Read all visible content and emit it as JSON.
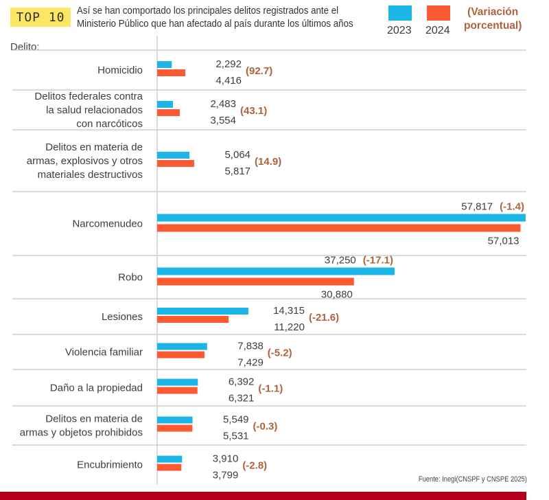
{
  "header": {
    "badge": "TOP 10",
    "subtitle_line1": "Así se han comportado los principales delitos registrados ante el",
    "subtitle_line2": "Ministerio Público que han afectado al país durante los últimos años",
    "category_header": "Delito:"
  },
  "legend": {
    "items": [
      {
        "label": "2023",
        "color": "#1bb6e6"
      },
      {
        "label": "2024",
        "color": "#fb5a33"
      }
    ],
    "variation_line1": "(Variación",
    "variation_line2": "porcentual)"
  },
  "source": "Fuente: Inegi(CNSPF y CNSPE 2025)",
  "colors": {
    "y2023": "#1bb6e6",
    "y2024": "#fb5a33",
    "variation": "#b0613a",
    "footer": "#b5001e",
    "badge": "#fde663"
  },
  "chart_data": {
    "type": "bar",
    "orientation": "horizontal",
    "title": "TOP 10",
    "subtitle": "Así se han comportado los principales delitos registrados ante el Ministerio Público que han afectado al país durante los últimos años",
    "ylabel": "Delito:",
    "xlabel": "",
    "grid": false,
    "legend_position": "top-right",
    "xlim": [
      0,
      57817
    ],
    "categories": [
      [
        "Homicidio"
      ],
      [
        "Delitos federales contra",
        "la salud relacionados",
        "con narcóticos"
      ],
      [
        "Delitos en materia de",
        "armas, explosivos y otros",
        "materiales destructivos"
      ],
      [
        "Narcomenudeo"
      ],
      [
        "Robo"
      ],
      [
        "Lesiones"
      ],
      [
        "Violencia familiar"
      ],
      [
        "Daño a la propiedad"
      ],
      [
        "Delitos en materia de",
        "armas y objetos prohibidos"
      ],
      [
        "Encubrimiento"
      ]
    ],
    "series": [
      {
        "name": "2023",
        "values": [
          2292,
          2483,
          5064,
          57817,
          37250,
          14315,
          7838,
          6392,
          5549,
          3910
        ],
        "labels": [
          "2,292",
          "2,483",
          "5,064",
          "57,817",
          "37,250",
          "14,315",
          "7,838",
          "6,392",
          "5,549",
          "3,910"
        ]
      },
      {
        "name": "2024",
        "values": [
          4416,
          3554,
          5817,
          57013,
          30880,
          11220,
          7429,
          6321,
          5531,
          3799
        ],
        "labels": [
          "4,416",
          "3,554",
          "5,817",
          "57,013",
          "30,880",
          "11,220",
          "7,429",
          "6,321",
          "5,531",
          "3,799"
        ]
      }
    ],
    "variation_percent": [
      92.7,
      43.1,
      14.9,
      -1.4,
      -17.1,
      -21.6,
      -5.2,
      -1.1,
      -0.3,
      -2.8
    ],
    "variation_labels": [
      "(92.7)",
      "(43.1)",
      "(14.9)",
      "(-1.4)",
      "(-17.1)",
      "(-21.6)",
      "(-5.2)",
      "(-1.1)",
      "(-0.3)",
      "(-2.8)"
    ]
  }
}
